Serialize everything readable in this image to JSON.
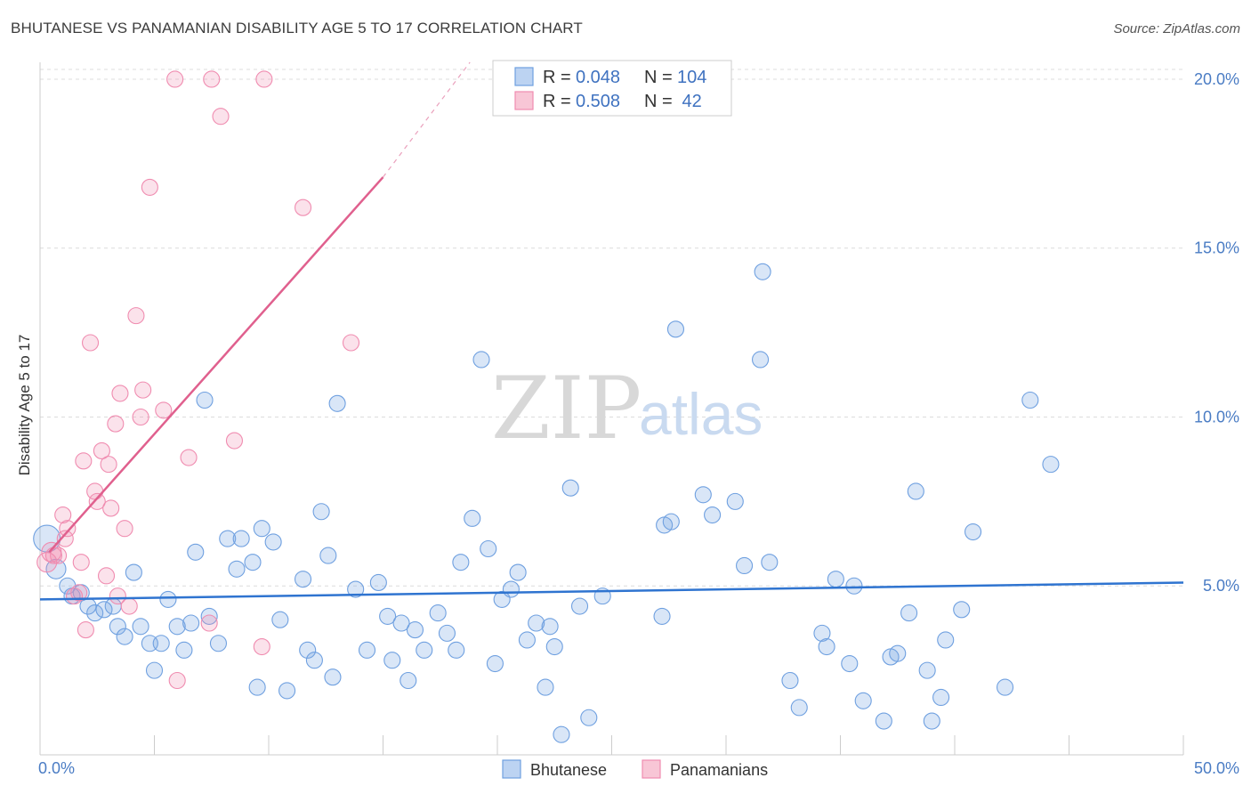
{
  "header": {
    "title": "BHUTANESE VS PANAMANIAN DISABILITY AGE 5 TO 17 CORRELATION CHART",
    "source": "Source: ZipAtlas.com"
  },
  "watermark": {
    "zip": "ZIP",
    "atlas": "atlas"
  },
  "legend": {
    "rows": [
      {
        "r_label": "R = ",
        "r_value": "0.048",
        "n_label": "N = ",
        "n_value": "104",
        "color": "#6fa0e0"
      },
      {
        "r_label": "R = ",
        "r_value": "0.508",
        "n_label": "N = ",
        "n_value": " 42",
        "color": "#f08cb0"
      }
    ]
  },
  "bottom_legend": [
    {
      "label": "Bhutanese",
      "color": "#6fa0e0"
    },
    {
      "label": "Panamanians",
      "color": "#f08cb0"
    }
  ],
  "chart_data": {
    "type": "scatter",
    "title": "BHUTANESE VS PANAMANIAN DISABILITY AGE 5 TO 17 CORRELATION CHART",
    "xlabel": "",
    "ylabel": "Disability Age 5 to 17",
    "xlim": [
      0,
      50
    ],
    "ylim": [
      0,
      20.5
    ],
    "x_tick_labels": [
      "0.0%",
      "50.0%"
    ],
    "y_ticks": [
      5,
      10,
      15,
      20
    ],
    "y_tick_labels": [
      "5.0%",
      "10.0%",
      "15.0%",
      "20.0%"
    ],
    "grid": true,
    "legend_placement": "top-center",
    "series": [
      {
        "name": "Bhutanese",
        "color": "#6fa0e0",
        "r": 0.048,
        "n": 104,
        "trend": {
          "x": [
            0,
            50
          ],
          "y": [
            4.6,
            5.1
          ]
        },
        "points": [
          [
            0.3,
            6.4
          ],
          [
            0.7,
            5.5
          ],
          [
            1.2,
            5.0
          ],
          [
            1.4,
            4.7
          ],
          [
            1.8,
            4.8
          ],
          [
            2.1,
            4.4
          ],
          [
            2.4,
            4.2
          ],
          [
            2.8,
            4.3
          ],
          [
            3.2,
            4.4
          ],
          [
            3.4,
            3.8
          ],
          [
            3.7,
            3.5
          ],
          [
            4.1,
            5.4
          ],
          [
            4.4,
            3.8
          ],
          [
            4.8,
            3.3
          ],
          [
            5.0,
            2.5
          ],
          [
            5.3,
            3.3
          ],
          [
            5.6,
            4.6
          ],
          [
            6.0,
            3.8
          ],
          [
            6.3,
            3.1
          ],
          [
            6.6,
            3.9
          ],
          [
            6.8,
            6.0
          ],
          [
            7.2,
            10.5
          ],
          [
            7.4,
            4.1
          ],
          [
            7.8,
            3.3
          ],
          [
            8.2,
            6.4
          ],
          [
            8.6,
            5.5
          ],
          [
            8.8,
            6.4
          ],
          [
            9.3,
            5.7
          ],
          [
            9.5,
            2.0
          ],
          [
            9.7,
            6.7
          ],
          [
            10.2,
            6.3
          ],
          [
            10.5,
            4.0
          ],
          [
            10.8,
            1.9
          ],
          [
            11.5,
            5.2
          ],
          [
            11.7,
            3.1
          ],
          [
            12.0,
            2.8
          ],
          [
            12.3,
            7.2
          ],
          [
            12.6,
            5.9
          ],
          [
            12.8,
            2.3
          ],
          [
            13.0,
            10.4
          ],
          [
            13.8,
            4.9
          ],
          [
            14.3,
            3.1
          ],
          [
            14.8,
            5.1
          ],
          [
            15.2,
            4.1
          ],
          [
            15.4,
            2.8
          ],
          [
            15.8,
            3.9
          ],
          [
            16.1,
            2.2
          ],
          [
            16.4,
            3.7
          ],
          [
            16.8,
            3.1
          ],
          [
            17.4,
            4.2
          ],
          [
            17.8,
            3.6
          ],
          [
            18.2,
            3.1
          ],
          [
            18.4,
            5.7
          ],
          [
            18.9,
            7.0
          ],
          [
            19.3,
            11.7
          ],
          [
            19.6,
            6.1
          ],
          [
            19.9,
            2.7
          ],
          [
            20.2,
            4.6
          ],
          [
            20.6,
            4.9
          ],
          [
            20.9,
            5.4
          ],
          [
            21.3,
            3.4
          ],
          [
            21.7,
            3.9
          ],
          [
            22.1,
            2.0
          ],
          [
            22.3,
            3.8
          ],
          [
            22.5,
            3.2
          ],
          [
            22.8,
            0.6
          ],
          [
            23.2,
            7.9
          ],
          [
            23.6,
            4.4
          ],
          [
            24.0,
            1.1
          ],
          [
            24.6,
            4.7
          ],
          [
            27.2,
            4.1
          ],
          [
            27.3,
            6.8
          ],
          [
            27.6,
            6.9
          ],
          [
            27.8,
            12.6
          ],
          [
            29.0,
            7.7
          ],
          [
            29.4,
            7.1
          ],
          [
            30.4,
            7.5
          ],
          [
            30.8,
            5.6
          ],
          [
            31.5,
            11.7
          ],
          [
            31.6,
            14.3
          ],
          [
            31.9,
            5.7
          ],
          [
            32.8,
            2.2
          ],
          [
            33.2,
            1.4
          ],
          [
            34.2,
            3.6
          ],
          [
            34.4,
            3.2
          ],
          [
            34.8,
            5.2
          ],
          [
            35.4,
            2.7
          ],
          [
            35.6,
            5.0
          ],
          [
            36.0,
            1.6
          ],
          [
            36.9,
            1.0
          ],
          [
            37.2,
            2.9
          ],
          [
            37.5,
            3.0
          ],
          [
            38.0,
            4.2
          ],
          [
            38.3,
            7.8
          ],
          [
            38.8,
            2.5
          ],
          [
            39.0,
            1.0
          ],
          [
            39.4,
            1.7
          ],
          [
            39.6,
            3.4
          ],
          [
            40.3,
            4.3
          ],
          [
            40.8,
            6.6
          ],
          [
            42.2,
            2.0
          ],
          [
            43.3,
            10.5
          ],
          [
            44.2,
            8.6
          ]
        ]
      },
      {
        "name": "Panamanians",
        "color": "#f08cb0",
        "r": 0.508,
        "n": 42,
        "trend": {
          "x": [
            0.4,
            15.0
          ],
          "y": [
            6.0,
            17.1
          ],
          "dash_to": [
            18.8,
            20.5
          ]
        },
        "points": [
          [
            0.3,
            5.7
          ],
          [
            0.5,
            6.0
          ],
          [
            0.6,
            5.9
          ],
          [
            0.8,
            5.9
          ],
          [
            1.0,
            7.1
          ],
          [
            1.1,
            6.4
          ],
          [
            1.2,
            6.7
          ],
          [
            1.5,
            4.7
          ],
          [
            1.7,
            4.8
          ],
          [
            1.8,
            5.7
          ],
          [
            1.9,
            8.7
          ],
          [
            2.0,
            3.7
          ],
          [
            2.2,
            12.2
          ],
          [
            2.4,
            7.8
          ],
          [
            2.5,
            7.5
          ],
          [
            2.7,
            9.0
          ],
          [
            2.9,
            5.3
          ],
          [
            3.0,
            8.6
          ],
          [
            3.1,
            7.3
          ],
          [
            3.3,
            9.8
          ],
          [
            3.4,
            4.7
          ],
          [
            3.5,
            10.7
          ],
          [
            3.7,
            6.7
          ],
          [
            3.9,
            4.4
          ],
          [
            4.2,
            13.0
          ],
          [
            4.4,
            10.0
          ],
          [
            4.5,
            10.8
          ],
          [
            4.8,
            16.8
          ],
          [
            5.4,
            10.2
          ],
          [
            5.9,
            20.0
          ],
          [
            6.0,
            2.2
          ],
          [
            6.5,
            8.8
          ],
          [
            7.4,
            3.9
          ],
          [
            7.5,
            20.0
          ],
          [
            7.9,
            18.9
          ],
          [
            8.5,
            9.3
          ],
          [
            9.7,
            3.2
          ],
          [
            9.8,
            20.0
          ],
          [
            11.5,
            16.2
          ],
          [
            13.6,
            12.2
          ]
        ]
      }
    ]
  }
}
